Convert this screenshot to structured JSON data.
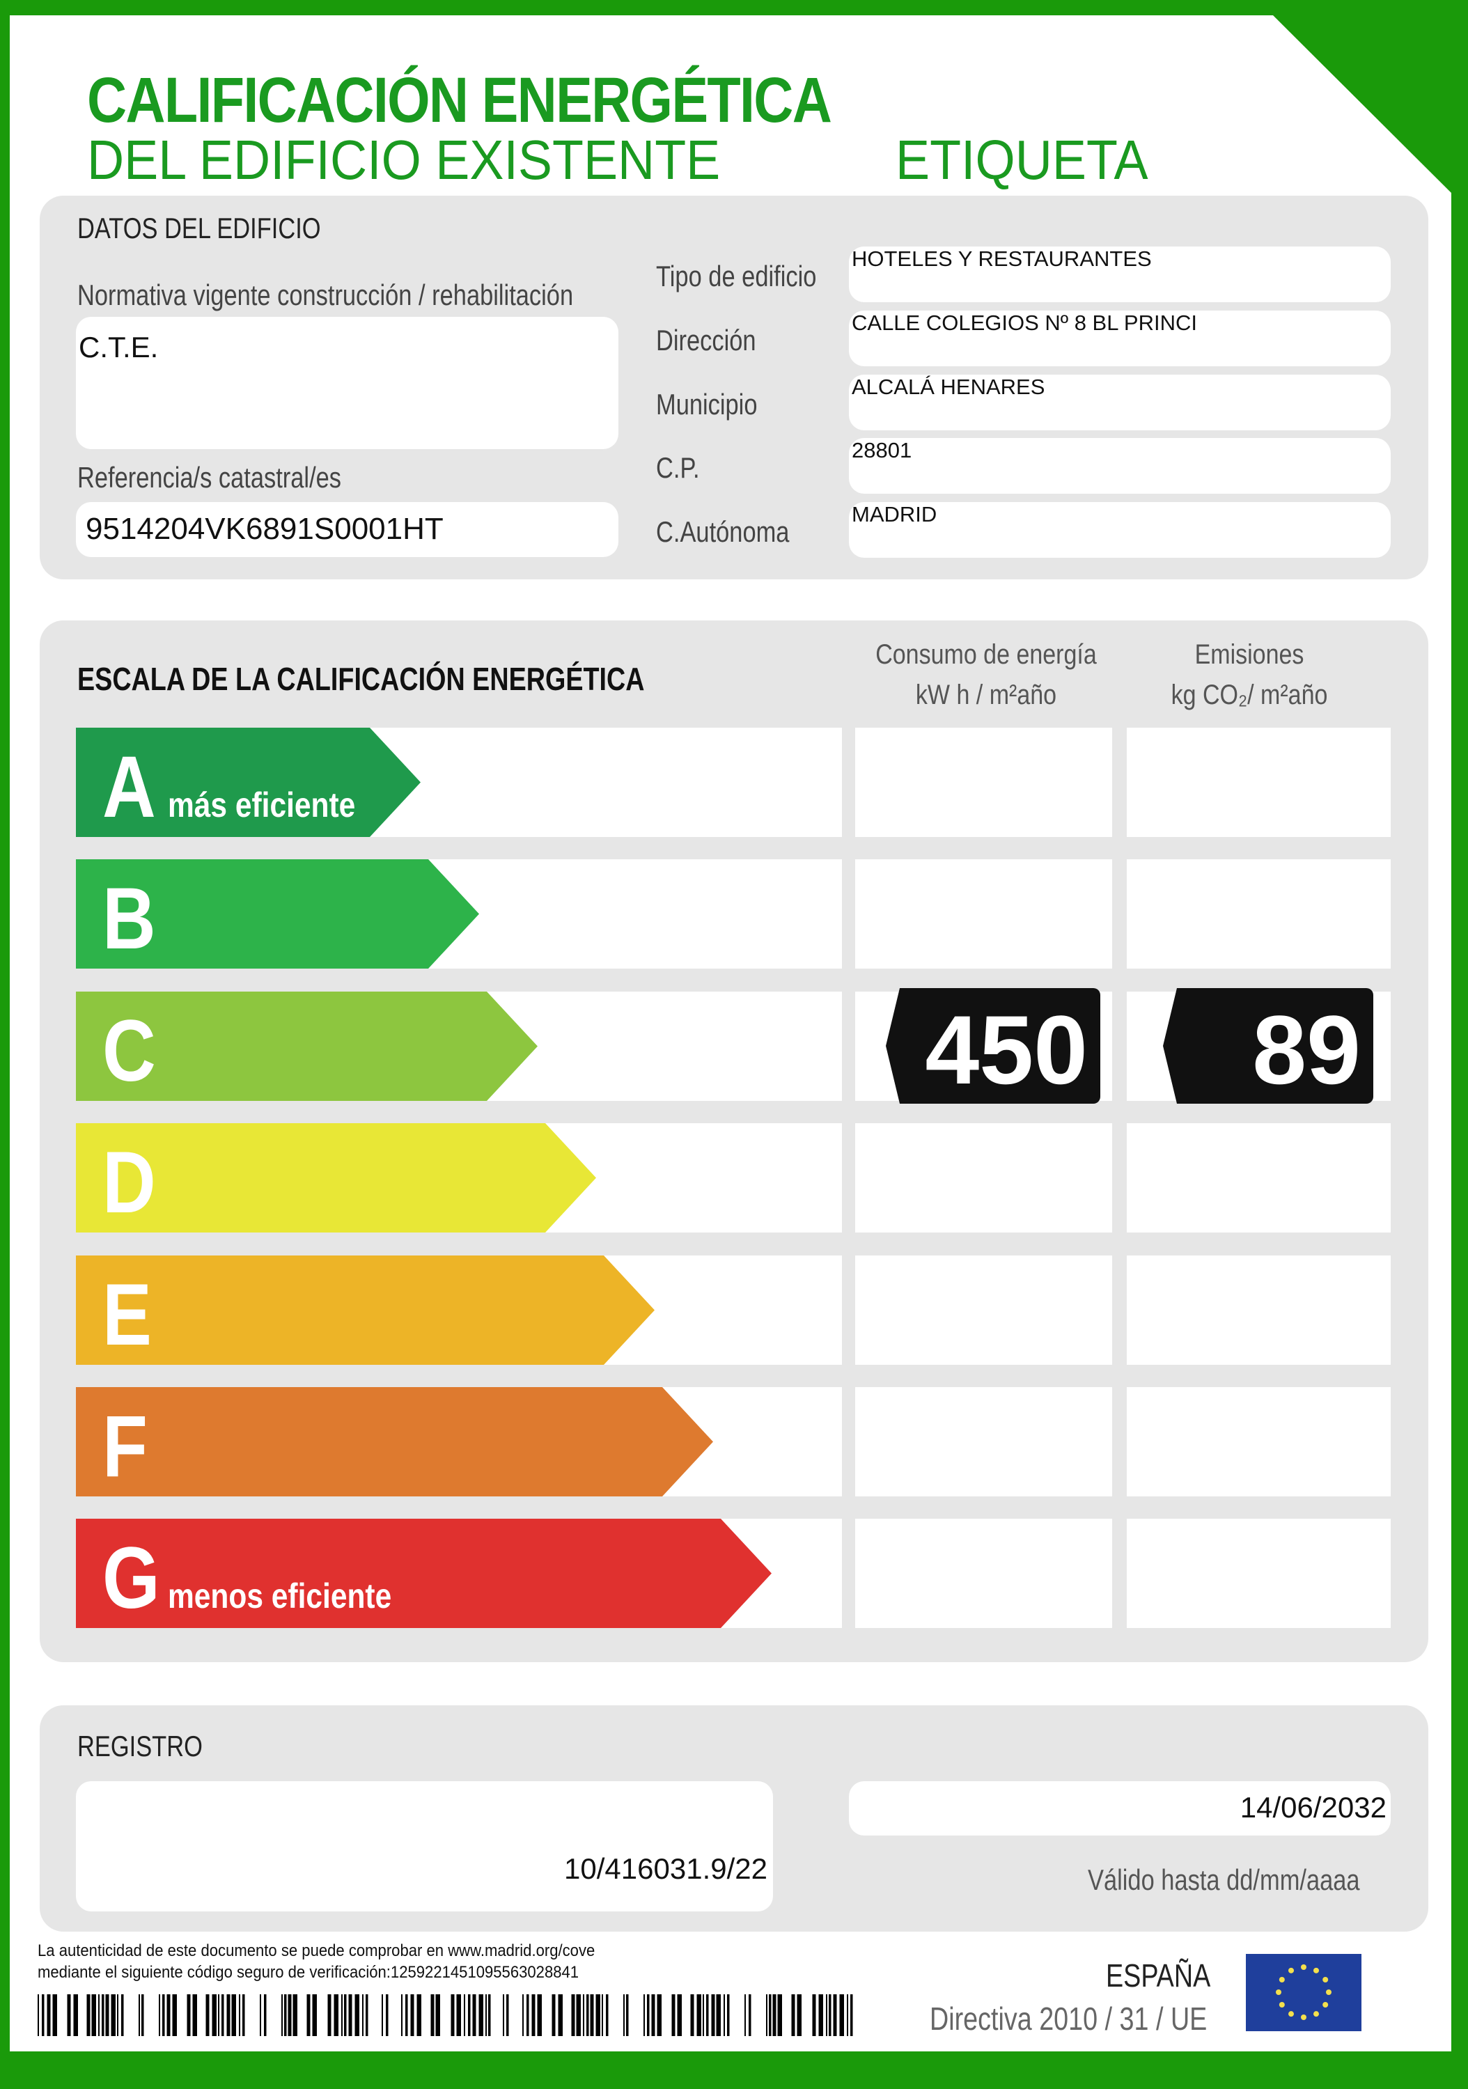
{
  "header": {
    "title_line1": "CALIFICACIÓN ENERGÉTICA",
    "title_line2": "DEL EDIFICIO EXISTENTE",
    "label": "ETIQUETA"
  },
  "building": {
    "section_title": "DATOS DEL EDIFICIO",
    "normativa_label": "Normativa vigente construcción / rehabilitación",
    "normativa_value": "C.T.E.",
    "referencia_label": "Referencia/s catastral/es",
    "referencia_value": "9514204VK6891S0001HT",
    "fields": [
      {
        "label": "Tipo de edificio",
        "value": "HOTELES Y RESTAURANTES"
      },
      {
        "label": "Dirección",
        "value": "CALLE COLEGIOS Nº 8 BL PRINCI"
      },
      {
        "label": "Municipio",
        "value": "ALCALÁ HENARES"
      },
      {
        "label": "C.P.",
        "value": "28801"
      },
      {
        "label": "C.Autónoma",
        "value": "MADRID"
      }
    ]
  },
  "scale": {
    "title": "ESCALA DE LA CALIFICACIÓN ENERGÉTICA",
    "col_energy_line1": "Consumo de energía",
    "col_energy_line2": "kW h / m²año",
    "col_emissions_line1": "Emisiones",
    "col_emissions_line2": "kg CO₂/ m²año",
    "classes": [
      {
        "letter": "A",
        "caption": "más eficiente",
        "color": "#1f9a4c"
      },
      {
        "letter": "B",
        "caption": "",
        "color": "#2db34a"
      },
      {
        "letter": "C",
        "caption": "",
        "color": "#8dc63f"
      },
      {
        "letter": "D",
        "caption": "",
        "color": "#e8e736"
      },
      {
        "letter": "E",
        "caption": "",
        "color": "#edb427"
      },
      {
        "letter": "F",
        "caption": "",
        "color": "#de7a2f"
      },
      {
        "letter": "G",
        "caption": "menos eficiente",
        "color": "#e0312f"
      }
    ],
    "rating_class": "C",
    "energy_value": "450",
    "emissions_value": "89"
  },
  "registro": {
    "title": "REGISTRO",
    "number": "10/416031.9/22",
    "valid_until": "14/06/2032",
    "valid_label": "Válido hasta dd/mm/aaaa"
  },
  "footer": {
    "line1": "La autenticidad de este documento se puede comprobar en www.madrid.org/cove",
    "line2": "mediante el siguiente código seguro de verificación:1259221451095563028841",
    "country": "ESPAÑA",
    "directive": "Directiva 2010 / 31 / UE",
    "flag_color": "#1f3f9c",
    "star_color": "#f4e04d"
  },
  "colors": {
    "brand_green": "#1a9a20",
    "border_green": "#1a9a0a"
  }
}
